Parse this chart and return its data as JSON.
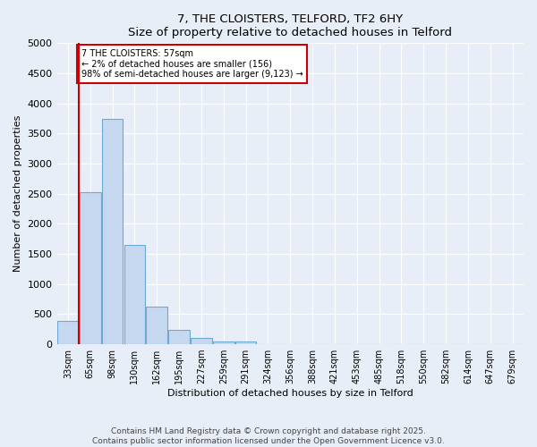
{
  "title": "7, THE CLOISTERS, TELFORD, TF2 6HY",
  "subtitle": "Size of property relative to detached houses in Telford",
  "xlabel": "Distribution of detached houses by size in Telford",
  "ylabel": "Number of detached properties",
  "categories": [
    "33sqm",
    "65sqm",
    "98sqm",
    "130sqm",
    "162sqm",
    "195sqm",
    "227sqm",
    "259sqm",
    "291sqm",
    "324sqm",
    "356sqm",
    "388sqm",
    "421sqm",
    "453sqm",
    "485sqm",
    "518sqm",
    "550sqm",
    "582sqm",
    "614sqm",
    "647sqm",
    "679sqm"
  ],
  "values": [
    390,
    2530,
    3750,
    1650,
    620,
    240,
    110,
    50,
    45,
    0,
    0,
    0,
    0,
    0,
    0,
    0,
    0,
    0,
    0,
    0,
    0
  ],
  "bar_color": "#c5d8f0",
  "bar_edge_color": "#6aaad4",
  "vline_color": "#cc0000",
  "annotation_text": "7 THE CLOISTERS: 57sqm\n← 2% of detached houses are smaller (156)\n98% of semi-detached houses are larger (9,123) →",
  "annotation_box_color": "#cc0000",
  "ylim": [
    0,
    5000
  ],
  "yticks": [
    0,
    500,
    1000,
    1500,
    2000,
    2500,
    3000,
    3500,
    4000,
    4500,
    5000
  ],
  "footer_line1": "Contains HM Land Registry data © Crown copyright and database right 2025.",
  "footer_line2": "Contains public sector information licensed under the Open Government Licence v3.0.",
  "bg_color": "#e8eef7",
  "plot_bg_color": "#e8eef7",
  "grid_color": "#ffffff"
}
